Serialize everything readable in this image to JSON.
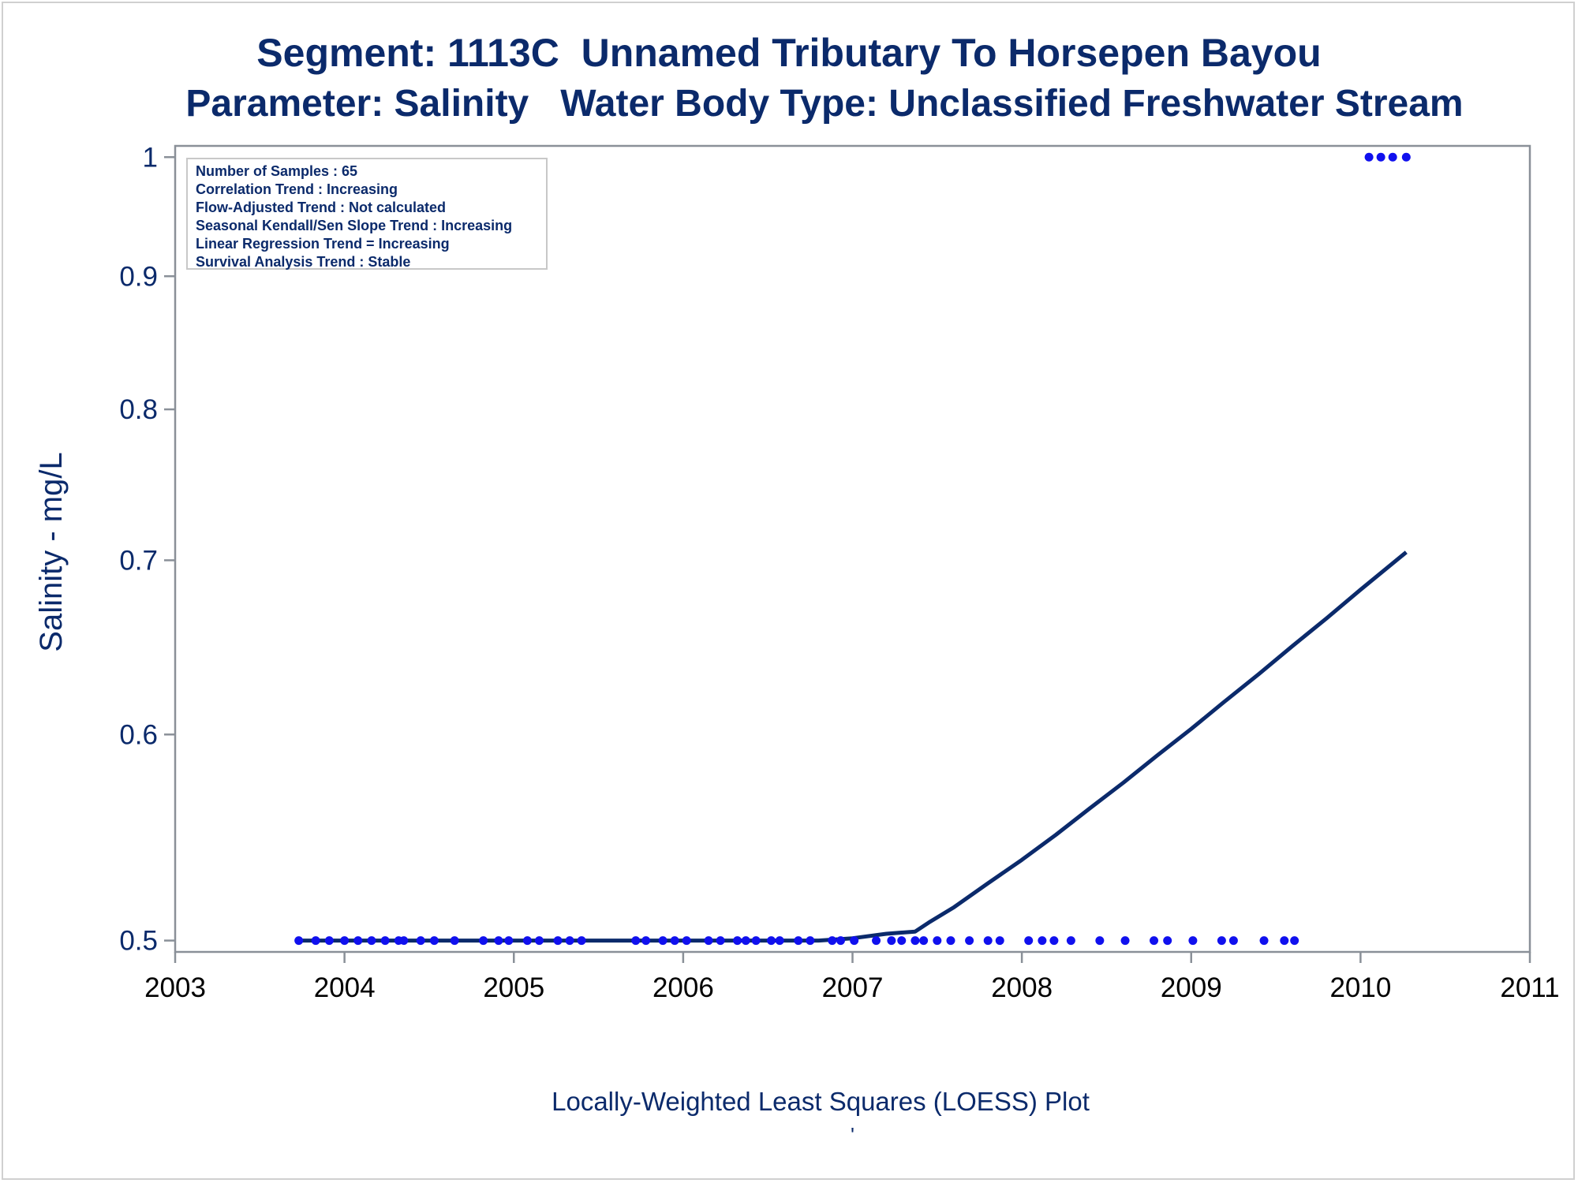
{
  "titles": {
    "line1": "Segment: 1113C  Unnamed Tributary To Horsepen Bayou",
    "line2": "Parameter: Salinity   Water Body Type: Unclassified Freshwater Stream"
  },
  "stats": [
    "Number of Samples : 65",
    "Correlation Trend : Increasing",
    "Flow-Adjusted Trend : Not calculated",
    "Seasonal Kendall/Sen Slope Trend : Increasing",
    "Linear Regression Trend = Increasing",
    "Survival Analysis Trend : Stable"
  ],
  "footnote": "Locally-Weighted Least Squares (LOESS) Plot",
  "footnote_mark": "'",
  "colors": {
    "title": "#0b2a6b",
    "points": "#1010ee",
    "line": "#0b2a6b",
    "axis": "#8a9098"
  },
  "chart_data": {
    "type": "scatter",
    "title": "Segment: 1113C  Unnamed Tributary To Horsepen Bayou",
    "subtitle": "Parameter: Salinity   Water Body Type: Unclassified Freshwater Stream",
    "xlabel": "",
    "ylabel": "Salinity - mg/L",
    "xlim": [
      2003,
      2011
    ],
    "ylim": [
      0.495,
      1.01
    ],
    "y_scale": "log",
    "xticks": [
      2003,
      2004,
      2005,
      2006,
      2007,
      2008,
      2009,
      2010,
      2011
    ],
    "xtick_labels": [
      "2003",
      "2004",
      "2005",
      "2006",
      "2007",
      "2008",
      "2009",
      "2010",
      "2011"
    ],
    "yticks": [
      0.5,
      0.6,
      0.7,
      0.8,
      0.9,
      1.0
    ],
    "ytick_labels": [
      "0.5",
      "0.6",
      "0.7",
      "0.8",
      "0.9",
      "1"
    ],
    "grid": false,
    "series": [
      {
        "type": "scatter",
        "x": [
          2003.73,
          2003.83,
          2003.91,
          2004.0,
          2004.08,
          2004.16,
          2004.24,
          2004.32,
          2004.35,
          2004.45,
          2004.53,
          2004.65,
          2004.82,
          2004.91,
          2004.97,
          2005.08,
          2005.15,
          2005.26,
          2005.33,
          2005.4,
          2005.72,
          2005.78,
          2005.88,
          2005.95,
          2006.02,
          2006.15,
          2006.22,
          2006.32,
          2006.37,
          2006.43,
          2006.52,
          2006.57,
          2006.68,
          2006.75,
          2006.88,
          2006.93,
          2007.01,
          2007.14,
          2007.23,
          2007.29,
          2007.37,
          2007.42,
          2007.5,
          2007.58,
          2007.69,
          2007.8,
          2007.87,
          2008.04,
          2008.12,
          2008.19,
          2008.29,
          2008.46,
          2008.61,
          2008.78,
          2008.86,
          2009.01,
          2009.18,
          2009.25,
          2009.43,
          2009.55,
          2009.61,
          2010.05,
          2010.12,
          2010.19,
          2010.27
        ],
        "y": [
          0.5,
          0.5,
          0.5,
          0.5,
          0.5,
          0.5,
          0.5,
          0.5,
          0.5,
          0.5,
          0.5,
          0.5,
          0.5,
          0.5,
          0.5,
          0.5,
          0.5,
          0.5,
          0.5,
          0.5,
          0.5,
          0.5,
          0.5,
          0.5,
          0.5,
          0.5,
          0.5,
          0.5,
          0.5,
          0.5,
          0.5,
          0.5,
          0.5,
          0.5,
          0.5,
          0.5,
          0.5,
          0.5,
          0.5,
          0.5,
          0.5,
          0.5,
          0.5,
          0.5,
          0.5,
          0.5,
          0.5,
          0.5,
          0.5,
          0.5,
          0.5,
          0.5,
          0.5,
          0.5,
          0.5,
          0.5,
          0.5,
          0.5,
          0.5,
          0.5,
          0.5,
          1.0,
          1.0,
          1.0,
          1.0
        ]
      },
      {
        "type": "line",
        "x": [
          2003.73,
          2004.5,
          2005.5,
          2006.5,
          2006.8,
          2007.0,
          2007.2,
          2007.37,
          2007.45,
          2007.6,
          2007.8,
          2008.0,
          2008.2,
          2008.4,
          2008.6,
          2008.8,
          2009.0,
          2009.2,
          2009.4,
          2009.6,
          2009.8,
          2010.0,
          2010.27
        ],
        "y": [
          0.5,
          0.5,
          0.5,
          0.5,
          0.5,
          0.501,
          0.503,
          0.504,
          0.508,
          0.515,
          0.526,
          0.537,
          0.549,
          0.562,
          0.575,
          0.589,
          0.603,
          0.618,
          0.633,
          0.649,
          0.665,
          0.682,
          0.705
        ]
      }
    ]
  }
}
